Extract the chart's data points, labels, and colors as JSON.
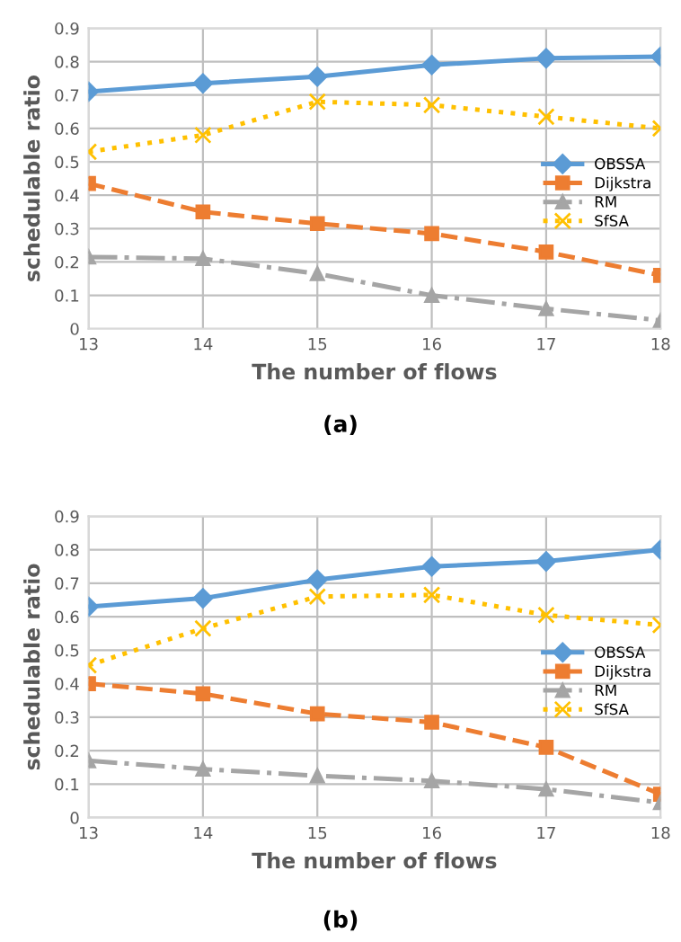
{
  "chart_data": [
    {
      "type": "line",
      "x": [
        13,
        14,
        15,
        16,
        17,
        18
      ],
      "xlabel": "The number of flows",
      "ylabel": "schedulable ratio",
      "xlim": [
        13,
        18
      ],
      "xticks": [
        13,
        14,
        15,
        16,
        17,
        18
      ],
      "ylim": [
        0,
        0.9
      ],
      "yticks": [
        0,
        0.1,
        0.2,
        0.3,
        0.4,
        0.5,
        0.6,
        0.7,
        0.8,
        0.9
      ],
      "grid": true,
      "legend": "center right",
      "annotations": [
        "(a)"
      ],
      "series": [
        {
          "name": "OBSSA",
          "color": "#5b9bd5",
          "marker": "diamond",
          "line_style": "solid",
          "values": [
            0.71,
            0.735,
            0.755,
            0.79,
            0.81,
            0.815
          ]
        },
        {
          "name": "Dijkstra",
          "color": "#ed7d31",
          "marker": "square",
          "line_style": "dashed",
          "values": [
            0.435,
            0.35,
            0.315,
            0.285,
            0.23,
            0.16
          ]
        },
        {
          "name": "RM",
          "color": "#a5a5a5",
          "marker": "triangle",
          "line_style": "dashdot",
          "values": [
            0.215,
            0.21,
            0.165,
            0.1,
            0.06,
            0.025
          ]
        },
        {
          "name": "SfSA",
          "color": "#ffc000",
          "marker": "cross",
          "line_style": "dotted",
          "values": [
            0.53,
            0.58,
            0.68,
            0.67,
            0.635,
            0.6
          ]
        }
      ]
    },
    {
      "type": "line",
      "x": [
        13,
        14,
        15,
        16,
        17,
        18
      ],
      "xlabel": "The number of flows",
      "ylabel": "schedulable ratio",
      "xlim": [
        13,
        18
      ],
      "xticks": [
        13,
        14,
        15,
        16,
        17,
        18
      ],
      "ylim": [
        0,
        0.9
      ],
      "yticks": [
        0,
        0.1,
        0.2,
        0.3,
        0.4,
        0.5,
        0.6,
        0.7,
        0.8,
        0.9
      ],
      "grid": true,
      "legend": "center right",
      "annotations": [
        "(b)"
      ],
      "series": [
        {
          "name": "OBSSA",
          "color": "#5b9bd5",
          "marker": "diamond",
          "line_style": "solid",
          "values": [
            0.63,
            0.655,
            0.71,
            0.75,
            0.765,
            0.8
          ]
        },
        {
          "name": "Dijkstra",
          "color": "#ed7d31",
          "marker": "square",
          "line_style": "dashed",
          "values": [
            0.4,
            0.37,
            0.31,
            0.285,
            0.21,
            0.07
          ]
        },
        {
          "name": "RM",
          "color": "#a5a5a5",
          "marker": "triangle",
          "line_style": "dashdot",
          "values": [
            0.17,
            0.145,
            0.125,
            0.11,
            0.085,
            0.045
          ]
        },
        {
          "name": "SfSA",
          "color": "#ffc000",
          "marker": "cross",
          "line_style": "dotted",
          "values": [
            0.455,
            0.565,
            0.66,
            0.665,
            0.605,
            0.575
          ]
        }
      ]
    }
  ]
}
